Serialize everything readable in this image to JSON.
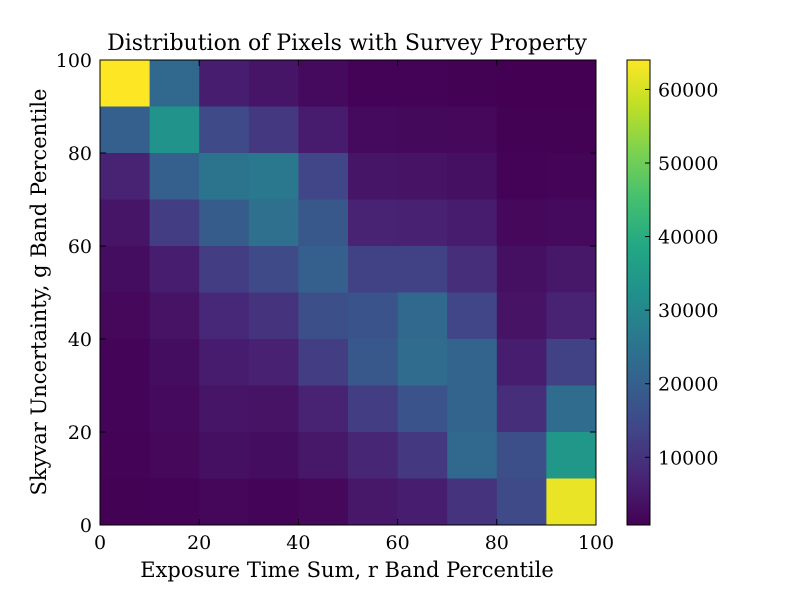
{
  "chart_data": {
    "type": "heatmap",
    "title": "Distribution of Pixels with Survey Property",
    "xlabel": "Exposure Time Sum, r Band Percentile",
    "ylabel": "Skyvar Uncertainty, g Band Percentile",
    "xlim": [
      0,
      100
    ],
    "ylim": [
      0,
      100
    ],
    "x_ticks": [
      "0",
      "20",
      "40",
      "60",
      "80",
      "100"
    ],
    "y_ticks": [
      "0",
      "20",
      "40",
      "60",
      "80",
      "100"
    ],
    "x_bin_edges": [
      0,
      10,
      20,
      30,
      40,
      50,
      60,
      70,
      80,
      90,
      100
    ],
    "y_bin_edges": [
      0,
      10,
      20,
      30,
      40,
      50,
      60,
      70,
      80,
      90,
      100
    ],
    "colormap": "viridis",
    "colorbar": {
      "min": 800,
      "max": 64000,
      "ticks": [
        10000,
        20000,
        30000,
        40000,
        50000,
        60000
      ],
      "tick_labels": [
        "10000",
        "20000",
        "30000",
        "40000",
        "50000",
        "60000"
      ]
    },
    "rows_note_top_to_bottom": "values[0] is the top row (y 90-100), last row is y 0-10",
    "values": [
      [
        64000,
        22000,
        6000,
        4500,
        2500,
        1200,
        1200,
        1000,
        800,
        800
      ],
      [
        20000,
        33000,
        15000,
        11000,
        5500,
        2500,
        2200,
        2000,
        900,
        900
      ],
      [
        7000,
        20000,
        25000,
        26000,
        14000,
        4500,
        4000,
        3500,
        1200,
        1500
      ],
      [
        4500,
        12000,
        19000,
        24000,
        18000,
        7000,
        6500,
        5500,
        2000,
        2500
      ],
      [
        3000,
        6000,
        12000,
        15000,
        20000,
        13000,
        13000,
        9000,
        3500,
        5000
      ],
      [
        2000,
        4000,
        8000,
        10000,
        16000,
        17000,
        22000,
        14000,
        4000,
        7000
      ],
      [
        1500,
        3000,
        5500,
        6500,
        12000,
        18000,
        23000,
        21000,
        6000,
        13000
      ],
      [
        1300,
        2500,
        4500,
        4000,
        7000,
        12000,
        17000,
        21000,
        9000,
        23000
      ],
      [
        1200,
        2000,
        3500,
        3000,
        5000,
        7500,
        11000,
        22000,
        16000,
        34000
      ],
      [
        1000,
        1200,
        1800,
        1500,
        2000,
        5000,
        6000,
        10000,
        15000,
        62000
      ]
    ]
  }
}
